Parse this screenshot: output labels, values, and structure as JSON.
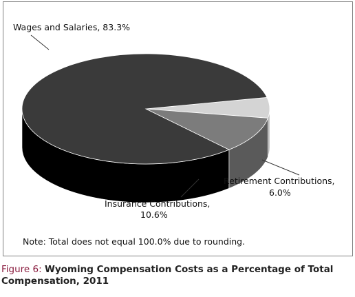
{
  "chart_data": {
    "type": "pie",
    "style": "3d",
    "slices": [
      {
        "label": "Wages and Salaries",
        "value_text": "83.3%",
        "value": 83.3,
        "color": "#3a3a3a",
        "side_color": "#000000"
      },
      {
        "label": "Insurance Contributions",
        "value_text": "10.6%",
        "value": 10.6,
        "color": "#7c7c7c",
        "side_color": "#5a5a5a"
      },
      {
        "label": "Retirement Contributions",
        "value_text": "6.0%",
        "value": 6.0,
        "color": "#d4d4d4",
        "side_color": "#b0b0b0"
      }
    ],
    "labels": {
      "wages": "Wages and Salaries, 83.3%",
      "insurance_line1": "Insurance Contributions,",
      "insurance_line2": "10.6%",
      "retirement_line1": "Retirement Contributions,",
      "retirement_line2": "6.0%"
    }
  },
  "note": "Note: Total does not equal 100.0% due to rounding.",
  "caption": {
    "prefix": "Figure 6: ",
    "title": "Wyoming Compensation Costs as a Percentage of Total Compensation, 2011"
  }
}
